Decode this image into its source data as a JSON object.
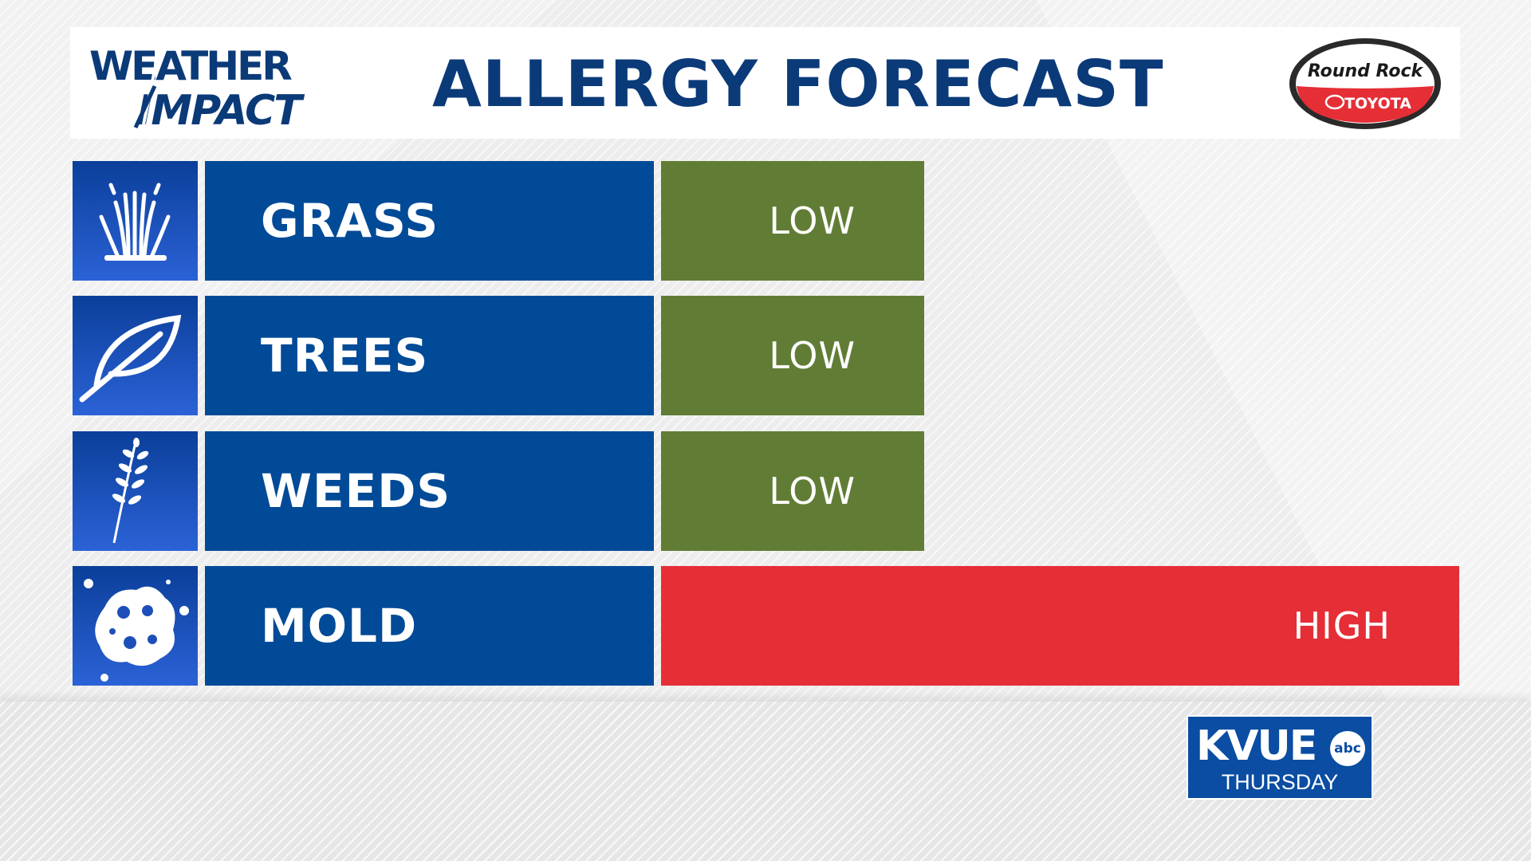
{
  "header": {
    "brand_line1": "WEATHER",
    "brand_line2": "IMPACT",
    "title": "ALLERGY FORECAST",
    "sponsor_line1": "Round Rock",
    "sponsor_line2": "TOYOTA"
  },
  "rows": [
    {
      "label": "GRASS",
      "icon": "grass-icon",
      "level": "LOW",
      "level_fraction": 0.33,
      "color": "#617d35"
    },
    {
      "label": "TREES",
      "icon": "leaf-icon",
      "level": "LOW",
      "level_fraction": 0.33,
      "color": "#617d35"
    },
    {
      "label": "WEEDS",
      "icon": "weed-icon",
      "level": "LOW",
      "level_fraction": 0.33,
      "color": "#617d35"
    },
    {
      "label": "MOLD",
      "icon": "mold-spore-icon",
      "level": "HIGH",
      "level_fraction": 1.0,
      "color": "#e52e36"
    }
  ],
  "station": {
    "call_letters": "KVUE",
    "network": "abc",
    "day": "THURSDAY"
  },
  "colors": {
    "title_navy": "#0b3a78",
    "label_blue": "#004a97",
    "low_green": "#617d35",
    "high_red": "#e52e36",
    "station_blue": "#0a4da2"
  }
}
